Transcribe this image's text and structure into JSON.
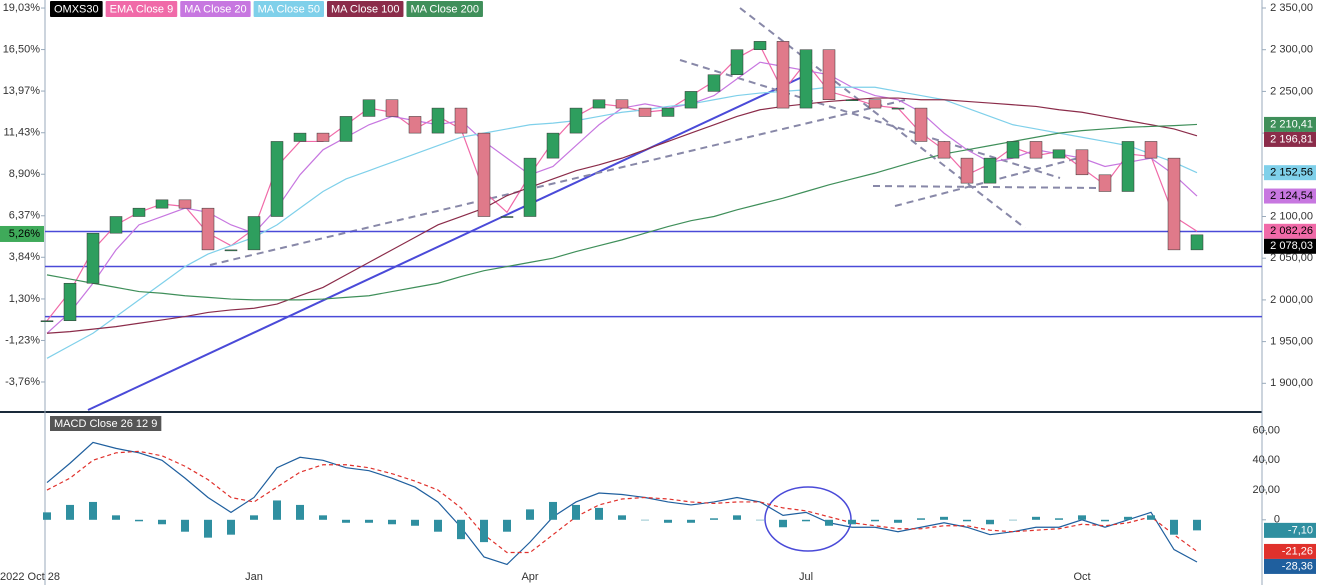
{
  "chart_data": [
    {
      "type": "candlestick",
      "categories": [
        "2022 Oct 28",
        null,
        null,
        null,
        null,
        null,
        null,
        null,
        null,
        "Jan",
        null,
        null,
        null,
        null,
        null,
        null,
        null,
        null,
        null,
        null,
        null,
        "Apr",
        null,
        null,
        null,
        null,
        null,
        null,
        null,
        null,
        null,
        null,
        null,
        "Jul",
        null,
        null,
        null,
        null,
        null,
        null,
        null,
        null,
        null,
        null,
        null,
        "Oct",
        null,
        null,
        null,
        null,
        null
      ],
      "series": [
        {
          "name": "OMXS30",
          "color": "#000000",
          "up_color": "#2e9e5e",
          "down_color": "#e07a8a",
          "values": [
            1975,
            2020,
            2080,
            2100,
            2110,
            2120,
            2110,
            2060,
            2060,
            2100,
            2190,
            2200,
            2190,
            2220,
            2240,
            2220,
            2200,
            2230,
            2200,
            2100,
            2100,
            2170,
            2200,
            2230,
            2240,
            2230,
            2220,
            2230,
            2250,
            2270,
            2300,
            2310,
            2230,
            2300,
            2240,
            2240,
            2230,
            2230,
            2190,
            2170,
            2140,
            2170,
            2190,
            2170,
            2180,
            2150,
            2130,
            2190,
            2170,
            2060,
            2078.03
          ],
          "last_label": "2 078,03"
        },
        {
          "name": "EMA Close 9",
          "color": "#f06aa8",
          "values": [
            1975,
            2010,
            2060,
            2090,
            2105,
            2115,
            2112,
            2080,
            2065,
            2085,
            2160,
            2190,
            2190,
            2210,
            2230,
            2225,
            2205,
            2220,
            2205,
            2130,
            2105,
            2150,
            2190,
            2220,
            2235,
            2232,
            2225,
            2228,
            2245,
            2262,
            2290,
            2305,
            2250,
            2285,
            2250,
            2242,
            2233,
            2230,
            2200,
            2180,
            2150,
            2163,
            2183,
            2173,
            2178,
            2158,
            2138,
            2175,
            2172,
            2100,
            2082.26
          ],
          "last_label": "2 082,26"
        },
        {
          "name": "MA Close 20",
          "color": "#c777e0",
          "values": [
            1960,
            1985,
            2020,
            2060,
            2090,
            2100,
            2110,
            2105,
            2090,
            2080,
            2110,
            2150,
            2180,
            2195,
            2210,
            2220,
            2215,
            2210,
            2215,
            2190,
            2170,
            2150,
            2160,
            2185,
            2210,
            2230,
            2235,
            2230,
            2235,
            2245,
            2265,
            2285,
            2280,
            2275,
            2270,
            2255,
            2245,
            2240,
            2225,
            2200,
            2180,
            2165,
            2170,
            2180,
            2175,
            2170,
            2160,
            2165,
            2170,
            2150,
            2124.54
          ],
          "last_label": "2 124,54"
        },
        {
          "name": "MA Close 50",
          "color": "#7fd0ea",
          "values": [
            1930,
            1945,
            1960,
            1980,
            2000,
            2020,
            2040,
            2055,
            2065,
            2075,
            2090,
            2110,
            2130,
            2145,
            2155,
            2165,
            2175,
            2185,
            2195,
            2200,
            2205,
            2210,
            2212,
            2215,
            2220,
            2225,
            2228,
            2232,
            2235,
            2240,
            2245,
            2248,
            2250,
            2252,
            2255,
            2255,
            2255,
            2250,
            2245,
            2240,
            2230,
            2220,
            2210,
            2205,
            2200,
            2195,
            2190,
            2185,
            2175,
            2165,
            2152.56
          ],
          "last_label": "2 152,56"
        },
        {
          "name": "MA Close 100",
          "color": "#8b2c4a",
          "values": [
            1960,
            1962,
            1965,
            1968,
            1972,
            1976,
            1980,
            1985,
            1988,
            1990,
            1995,
            2005,
            2015,
            2030,
            2045,
            2060,
            2075,
            2090,
            2100,
            2110,
            2125,
            2135,
            2145,
            2155,
            2162,
            2170,
            2180,
            2190,
            2200,
            2210,
            2220,
            2228,
            2232,
            2235,
            2238,
            2240,
            2242,
            2242,
            2240,
            2240,
            2238,
            2236,
            2234,
            2232,
            2228,
            2225,
            2220,
            2215,
            2210,
            2205,
            2196.81
          ],
          "last_label": "2 196,81"
        },
        {
          "name": "MA Close 200",
          "color": "#3f8f5a",
          "values": [
            2030,
            2025,
            2020,
            2015,
            2010,
            2008,
            2005,
            2003,
            2001,
            2000,
            2000,
            2000,
            2001,
            2003,
            2005,
            2010,
            2015,
            2020,
            2028,
            2035,
            2040,
            2045,
            2050,
            2058,
            2065,
            2072,
            2080,
            2088,
            2095,
            2100,
            2108,
            2115,
            2122,
            2130,
            2138,
            2145,
            2152,
            2160,
            2168,
            2175,
            2180,
            2185,
            2190,
            2195,
            2200,
            2203,
            2205,
            2207,
            2208,
            2209,
            2210.41
          ],
          "last_label": "2 210,41"
        }
      ],
      "ylim": [
        1865.6,
        2359.6
      ],
      "yticks": [
        {
          "value": 1900,
          "label": "1 900,00"
        },
        {
          "value": 1950,
          "label": "1 950,00"
        },
        {
          "value": 2000,
          "label": "2 000,00"
        },
        {
          "value": 2050,
          "label": "2 050,00"
        },
        {
          "value": 2100,
          "label": "2 100,00"
        },
        {
          "value": 2150,
          "label": "2 150,00"
        },
        {
          "value": 2200,
          "label": "2 200,00"
        },
        {
          "value": 2250,
          "label": "2 250,00"
        },
        {
          "value": 2300,
          "label": "2 300,00"
        },
        {
          "value": 2350,
          "label": "2 350,00"
        }
      ],
      "y2lim": [
        -5.59,
        19.52
      ],
      "y2ticks": [
        {
          "value": -3.76,
          "label": "-3,76%"
        },
        {
          "value": -1.23,
          "label": "-1,23%"
        },
        {
          "value": 1.3,
          "label": "1,30%"
        },
        {
          "value": 3.84,
          "label": "3,84%"
        },
        {
          "value": 6.37,
          "label": "6,37%"
        },
        {
          "value": 8.9,
          "label": "8,90%"
        },
        {
          "value": 11.43,
          "label": "11,43%"
        },
        {
          "value": 13.97,
          "label": "13,97%"
        },
        {
          "value": 16.5,
          "label": "16,50%"
        },
        {
          "value": 19.03,
          "label": "19,03%"
        }
      ],
      "current_pct": {
        "value": 5.26,
        "label": "5,26%"
      },
      "hlines": [
        2082,
        2040,
        1980
      ],
      "grid": false
    },
    {
      "type": "macd",
      "title": "MACD Close 26 12 9",
      "series": [
        {
          "kind": "line",
          "color": "#1f5f9e",
          "values": [
            25,
            38,
            52,
            48,
            45,
            40,
            28,
            15,
            5,
            15,
            35,
            42,
            40,
            35,
            33,
            28,
            22,
            12,
            -5,
            -25,
            -30,
            -15,
            2,
            12,
            18,
            17,
            15,
            12,
            10,
            12,
            15,
            12,
            3,
            5,
            -2,
            -5,
            -5,
            -8,
            -5,
            -2,
            -5,
            -10,
            -8,
            -5,
            -5,
            0,
            -5,
            0,
            5,
            -20,
            -28.36
          ],
          "last_label": "-28,36"
        },
        {
          "kind": "dashed",
          "color": "#e0312c",
          "values": [
            20,
            28,
            40,
            45,
            46,
            43,
            36,
            27,
            15,
            12,
            22,
            32,
            37,
            37,
            35,
            31,
            26,
            20,
            8,
            -10,
            -22,
            -22,
            -10,
            2,
            10,
            14,
            15,
            14,
            12,
            11,
            12,
            12,
            8,
            6,
            2,
            -2,
            -4,
            -6,
            -6,
            -4,
            -4,
            -7,
            -8,
            -7,
            -6,
            -3,
            -4,
            -2,
            2,
            -10,
            -21.26
          ],
          "last_label": "-21,26"
        },
        {
          "kind": "bar",
          "color": "#2f8fa0",
          "values": [
            5,
            10,
            12,
            3,
            -1,
            -3,
            -8,
            -12,
            -10,
            3,
            13,
            10,
            3,
            -2,
            -2,
            -3,
            -4,
            -8,
            -13,
            -15,
            -8,
            7,
            12,
            10,
            8,
            3,
            0,
            -2,
            -2,
            1,
            3,
            0,
            -5,
            -1,
            -4,
            -3,
            -1,
            -2,
            1,
            2,
            -1,
            -3,
            0,
            2,
            1,
            3,
            -1,
            2,
            3,
            -10,
            -7.1
          ],
          "last_label": "-7,10"
        }
      ],
      "ylim": [
        -41.8,
        71.1
      ],
      "yticks": [
        0,
        {
          "value": 20,
          "label": "20,00"
        },
        {
          "value": 40,
          "label": "40,00"
        },
        {
          "value": 60,
          "label": "60,00"
        }
      ]
    }
  ]
}
